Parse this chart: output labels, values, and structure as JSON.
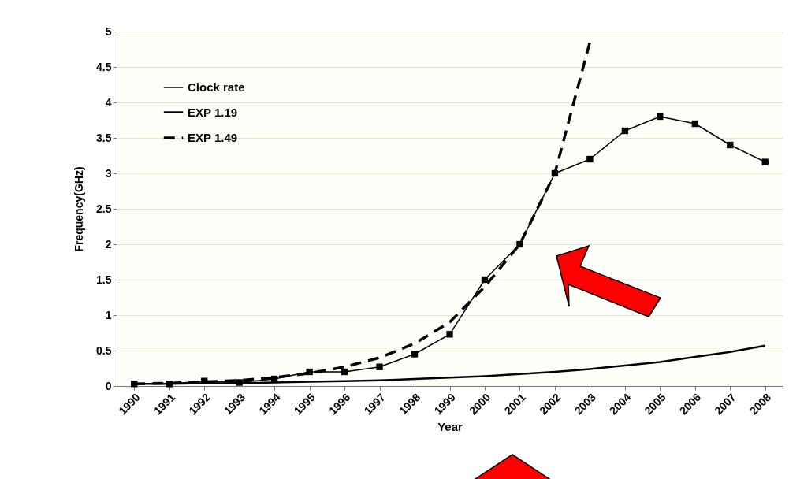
{
  "chart_data": {
    "type": "line",
    "xlabel": "Year",
    "ylabel": "Frequency(GHz)",
    "categories": [
      "1990",
      "1991",
      "1992",
      "1993",
      "1994",
      "1995",
      "1996",
      "1997",
      "1998",
      "1999",
      "2000",
      "2001",
      "2002",
      "2003",
      "2004",
      "2005",
      "2006",
      "2007",
      "2008"
    ],
    "series": [
      {
        "name": "Clock rate",
        "color": "#000000",
        "marker": "square",
        "line_style": "solid",
        "values": [
          0.03,
          0.03,
          0.07,
          0.05,
          0.1,
          0.2,
          0.2,
          0.27,
          0.45,
          0.73,
          1.5,
          2.0,
          3.0,
          3.2,
          3.6,
          3.8,
          3.7,
          3.4,
          3.16
        ]
      },
      {
        "name": "EXP 1.19",
        "color": "#000000",
        "marker": "none",
        "line_style": "solid",
        "values": [
          0.03,
          0.03,
          0.04,
          0.04,
          0.05,
          0.06,
          0.07,
          0.08,
          0.1,
          0.12,
          0.14,
          0.17,
          0.2,
          0.24,
          0.29,
          0.34,
          0.41,
          0.48,
          0.57
        ]
      },
      {
        "name": "EXP 1.49",
        "color": "#000000",
        "marker": "none",
        "line_style": "dashed",
        "values": [
          0.03,
          0.04,
          0.06,
          0.08,
          0.12,
          0.18,
          0.27,
          0.4,
          0.6,
          0.9,
          1.4,
          2.0,
          3.0,
          4.85,
          null,
          null,
          null,
          null,
          null
        ]
      }
    ],
    "ylim": [
      0,
      5
    ],
    "yticks": [
      0,
      0.5,
      1,
      1.5,
      2,
      2.5,
      3,
      3.5,
      4,
      4.5,
      5
    ],
    "grid": "y",
    "legend": "top left"
  }
}
